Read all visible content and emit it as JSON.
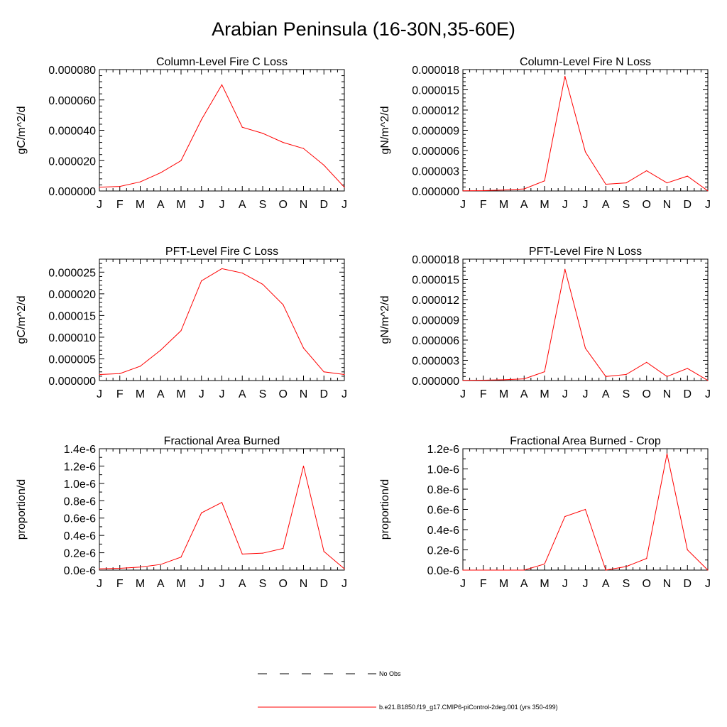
{
  "title": "Arabian Peninsula (16-30N,35-60E)",
  "month_labels": [
    "J",
    "F",
    "M",
    "A",
    "M",
    "J",
    "J",
    "A",
    "S",
    "O",
    "N",
    "D",
    "J"
  ],
  "legend": {
    "obs_label": "No Obs",
    "model_label": "b.e21.B1850.f19_g17.CMIP6-piControl-2deg.001 (yrs 350-499)",
    "model_color": "#ff0000",
    "obs_color": "#000000"
  },
  "chart_data": [
    {
      "type": "line",
      "title": "Column-Level Fire C Loss",
      "ylabel": "gC/m^2/d",
      "ylim": [
        0,
        8e-05
      ],
      "yticks": [
        0,
        2e-05,
        4e-05,
        6e-05,
        8e-05
      ],
      "ytick_labels": [
        "0.000000",
        "0.000020",
        "0.000040",
        "0.000060",
        "0.000080"
      ],
      "yminor": 4,
      "categories": [
        "J",
        "F",
        "M",
        "A",
        "M",
        "J",
        "J",
        "A",
        "S",
        "O",
        "N",
        "D",
        "J"
      ],
      "values": [
        2.5e-06,
        3e-06,
        6e-06,
        1.2e-05,
        2e-05,
        4.7e-05,
        7e-05,
        4.2e-05,
        3.8e-05,
        3.2e-05,
        2.8e-05,
        1.7e-05,
        2.5e-06
      ]
    },
    {
      "type": "line",
      "title": "Column-Level Fire N Loss",
      "ylabel": "gN/m^2/d",
      "ylim": [
        0,
        1.8e-05
      ],
      "yticks": [
        0,
        3e-06,
        6e-06,
        9e-06,
        1.2e-05,
        1.5e-05,
        1.8e-05
      ],
      "ytick_labels": [
        "0.000000",
        "0.000003",
        "0.000006",
        "0.000009",
        "0.000012",
        "0.000015",
        "0.000018"
      ],
      "yminor": 4,
      "categories": [
        "J",
        "F",
        "M",
        "A",
        "M",
        "J",
        "J",
        "A",
        "S",
        "O",
        "N",
        "D",
        "J"
      ],
      "values": [
        2e-08,
        5e-08,
        1.5e-07,
        3e-07,
        1.5e-06,
        1.7e-05,
        5.8e-06,
        1e-06,
        1.2e-06,
        3e-06,
        1.2e-06,
        2.2e-06,
        2e-08
      ]
    },
    {
      "type": "line",
      "title": "PFT-Level Fire C Loss",
      "ylabel": "gC/m^2/d",
      "ylim": [
        0,
        2.8e-05
      ],
      "yticks": [
        0,
        5e-06,
        1e-05,
        1.5e-05,
        2e-05,
        2.5e-05
      ],
      "ytick_labels": [
        "0.000000",
        "0.000005",
        "0.000010",
        "0.000015",
        "0.000020",
        "0.000025"
      ],
      "yminor": 4,
      "categories": [
        "J",
        "F",
        "M",
        "A",
        "M",
        "J",
        "J",
        "A",
        "S",
        "O",
        "N",
        "D",
        "J"
      ],
      "values": [
        1.4e-06,
        1.6e-06,
        3.3e-06,
        7e-06,
        1.15e-05,
        2.3e-05,
        2.58e-05,
        2.48e-05,
        2.22e-05,
        1.75e-05,
        7.5e-06,
        2e-06,
        1.4e-06
      ]
    },
    {
      "type": "line",
      "title": "PFT-Level Fire N Loss",
      "ylabel": "gN/m^2/d",
      "ylim": [
        0,
        1.8e-05
      ],
      "yticks": [
        0,
        3e-06,
        6e-06,
        9e-06,
        1.2e-05,
        1.5e-05,
        1.8e-05
      ],
      "ytick_labels": [
        "0.000000",
        "0.000003",
        "0.000006",
        "0.000009",
        "0.000012",
        "0.000015",
        "0.000018"
      ],
      "yminor": 4,
      "categories": [
        "J",
        "F",
        "M",
        "A",
        "M",
        "J",
        "J",
        "A",
        "S",
        "O",
        "N",
        "D",
        "J"
      ],
      "values": [
        2e-08,
        5e-08,
        1.2e-07,
        2.5e-07,
        1.3e-06,
        1.65e-05,
        4.8e-06,
        6e-07,
        9e-07,
        2.7e-06,
        6e-07,
        1.8e-06,
        2e-08
      ]
    },
    {
      "type": "line",
      "title": "Fractional Area Burned",
      "ylabel": "proportion/d",
      "ylim": [
        0,
        1.4e-06
      ],
      "yticks": [
        0,
        2e-07,
        4e-07,
        6e-07,
        8e-07,
        1e-06,
        1.2e-06,
        1.4e-06
      ],
      "ytick_labels": [
        "0.0e-6",
        "0.2e-6",
        "0.4e-6",
        "0.6e-6",
        "0.8e-6",
        "1.0e-6",
        "1.2e-6",
        "1.4e-6"
      ],
      "yminor": 1,
      "categories": [
        "J",
        "F",
        "M",
        "A",
        "M",
        "J",
        "J",
        "A",
        "S",
        "O",
        "N",
        "D",
        "J"
      ],
      "values": [
        1.5e-08,
        2e-08,
        3.5e-08,
        6.5e-08,
        1.5e-07,
        6.6e-07,
        7.8e-07,
        1.85e-07,
        1.95e-07,
        2.5e-07,
        1.2e-06,
        2.15e-07,
        1.5e-08
      ]
    },
    {
      "type": "line",
      "title": "Fractional Area Burned - Crop",
      "ylabel": "proportion/d",
      "ylim": [
        0,
        1.2e-06
      ],
      "yticks": [
        0,
        2e-07,
        4e-07,
        6e-07,
        8e-07,
        1e-06,
        1.2e-06
      ],
      "ytick_labels": [
        "0.0e-6",
        "0.2e-6",
        "0.4e-6",
        "0.6e-6",
        "0.8e-6",
        "1.0e-6",
        "1.2e-6"
      ],
      "yminor": 1,
      "categories": [
        "J",
        "F",
        "M",
        "A",
        "M",
        "J",
        "J",
        "A",
        "S",
        "O",
        "N",
        "D",
        "J"
      ],
      "values": [
        0,
        0,
        0,
        0,
        6e-08,
        5.3e-07,
        6e-07,
        0,
        3.5e-08,
        1.15e-07,
        1.15e-06,
        2e-07,
        0
      ]
    }
  ]
}
